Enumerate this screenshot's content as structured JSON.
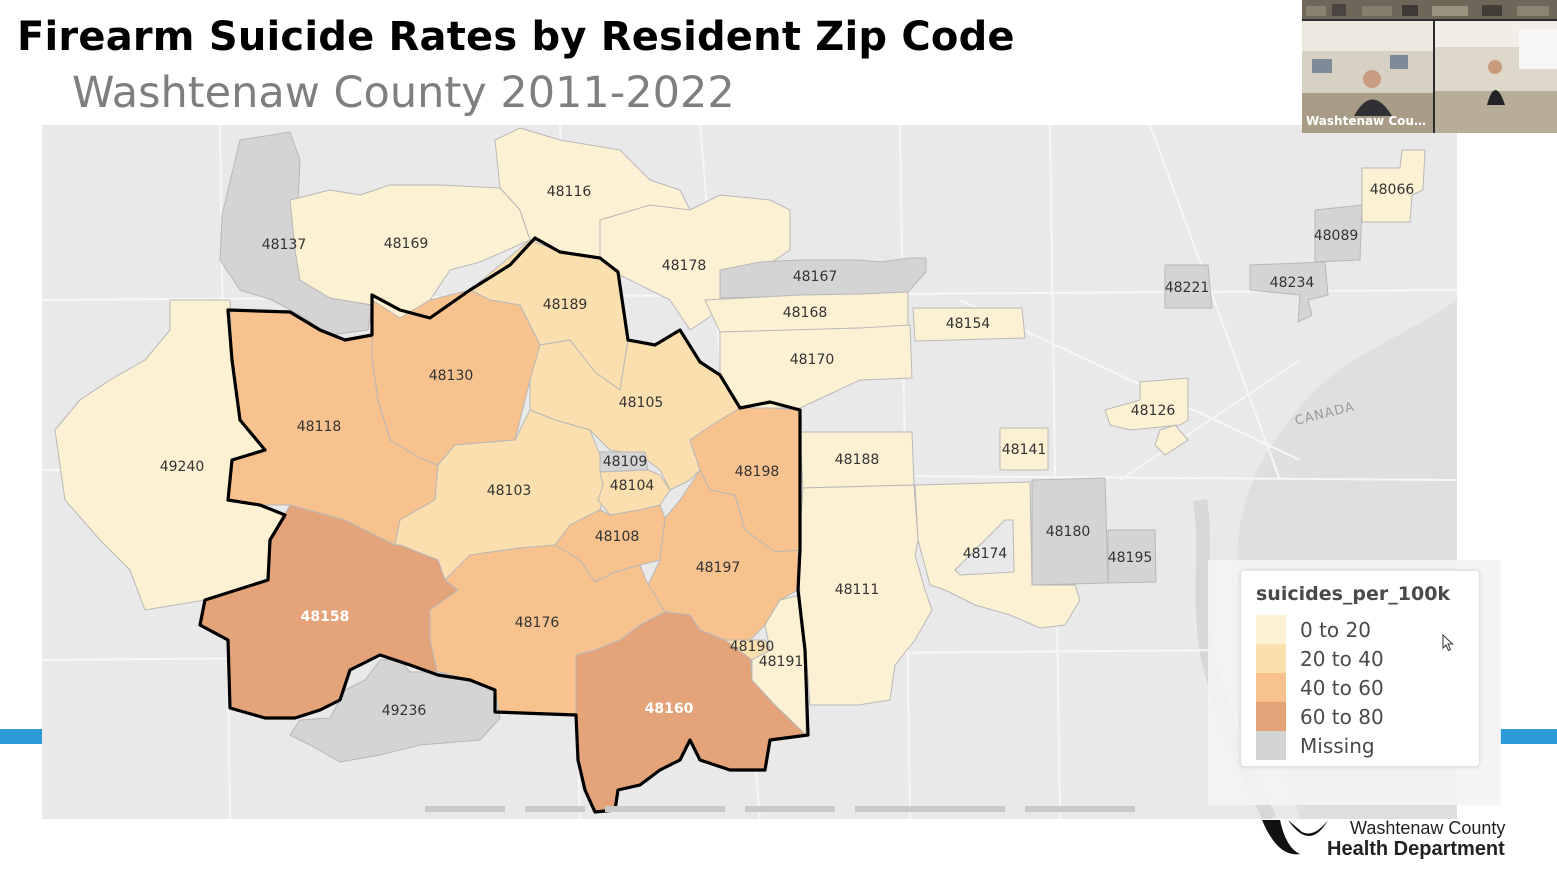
{
  "slide": {
    "title": "Firearm Suicide Rates by Resident Zip Code",
    "subtitle": "Washtenaw County 2011-2022"
  },
  "colors": {
    "accent": "#2a9bd6",
    "bin_0_20": "#fdf1d4",
    "bin_20_40": "#fbdfae",
    "bin_40_60": "#f8c28e",
    "bin_60_80": "#e5a37a",
    "missing": "#d4d4d4",
    "county_outline": "#000000",
    "basemap": "#e9e9e9"
  },
  "map": {
    "region_label": "CANADA",
    "zip_labels": {
      "z48116": "48116",
      "z48137": "48137",
      "z48169": "48169",
      "z48178": "48178",
      "z48167": "48167",
      "z48189": "48189",
      "z48168": "48168",
      "z48154": "48154",
      "z48170": "48170",
      "z48130": "48130",
      "z48118": "48118",
      "z48105": "48105",
      "z49240": "49240",
      "z48103": "48103",
      "z48109": "48109",
      "z48104": "48104",
      "z48198": "48198",
      "z48188": "48188",
      "z48141": "48141",
      "z48108": "48108",
      "z48197": "48197",
      "z48158": "48158",
      "z48176": "48176",
      "z48111": "48111",
      "z48174": "48174",
      "z48180": "48180",
      "z48195": "48195",
      "z48190": "48190",
      "z48191": "48191",
      "z48160": "48160",
      "z49236": "49236",
      "z48066": "48066",
      "z48089": "48089",
      "z48221": "48221",
      "z48234": "48234",
      "z48126": "48126"
    }
  },
  "legend": {
    "title": "suicides_per_100k",
    "items": [
      {
        "label": "0 to 20",
        "color": "#fdf1d4"
      },
      {
        "label": "20 to 40",
        "color": "#fbdfae"
      },
      {
        "label": "40 to 60",
        "color": "#f8c28e"
      },
      {
        "label": "60 to 80",
        "color": "#e5a37a"
      },
      {
        "label": "Missing",
        "color": "#d4d4d4"
      }
    ]
  },
  "video": {
    "caption": "Washtenaw County ..."
  },
  "logo": {
    "org_name": "Washtenaw County",
    "dept_name": "Health Department"
  },
  "icons": {
    "cursor": "mouse-pointer-icon",
    "logo_mark": "washtenaw-logo-icon"
  }
}
